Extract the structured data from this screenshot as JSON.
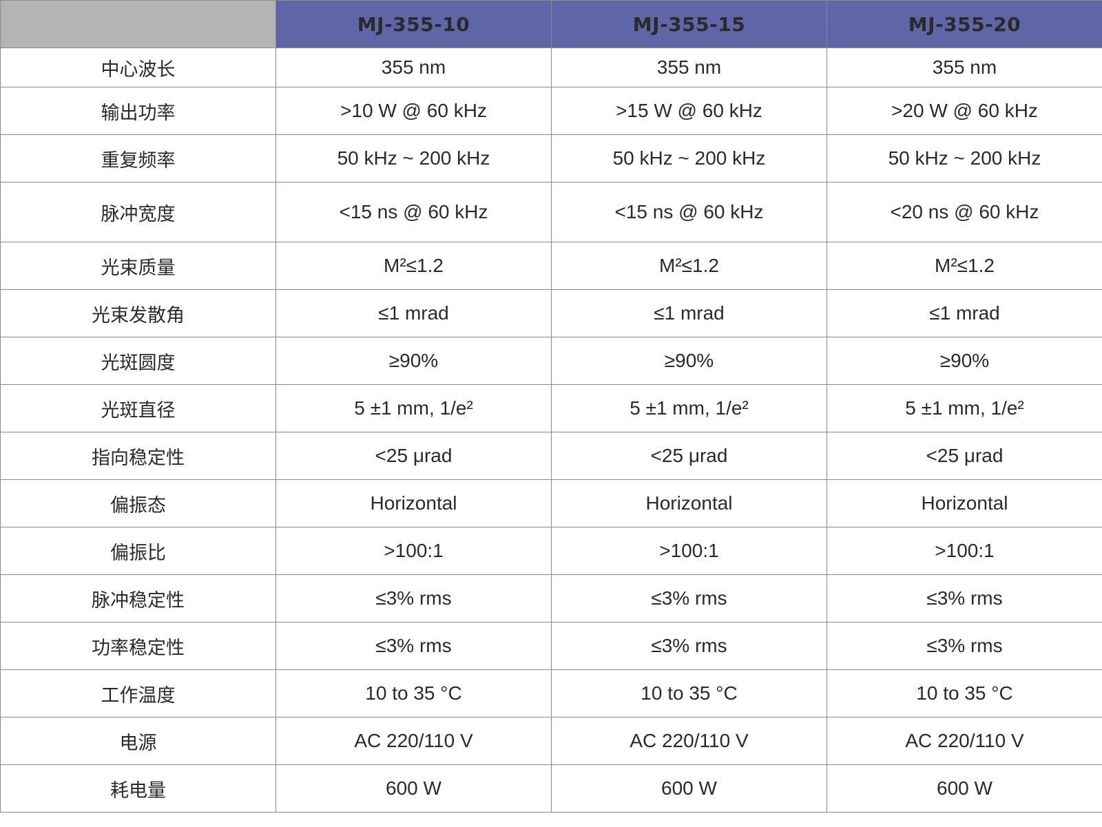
{
  "table": {
    "corner": "",
    "models": [
      "MJ-355-10",
      "MJ-355-15",
      "MJ-355-20"
    ],
    "rows": [
      {
        "label": "中心波长",
        "values": [
          "355 nm",
          "355 nm",
          "355 nm"
        ]
      },
      {
        "label": "输出功率",
        "values": [
          ">10 W @ 60 kHz",
          ">15 W @ 60 kHz",
          ">20 W @ 60 kHz"
        ]
      },
      {
        "label": "重复频率",
        "values": [
          "50 kHz ~ 200 kHz",
          "50 kHz ~ 200 kHz",
          "50 kHz ~ 200 kHz"
        ]
      },
      {
        "label": "脉冲宽度",
        "values": [
          "<15 ns @ 60 kHz",
          "<15 ns @ 60 kHz",
          "<20 ns @ 60 kHz"
        ]
      },
      {
        "label": "光束质量",
        "values": [
          "M²≤1.2",
          "M²≤1.2",
          "M²≤1.2"
        ]
      },
      {
        "label": "光束发散角",
        "values": [
          "≤1 mrad",
          "≤1 mrad",
          "≤1 mrad"
        ]
      },
      {
        "label": "光斑圆度",
        "values": [
          "≥90%",
          "≥90%",
          "≥90%"
        ]
      },
      {
        "label": "光斑直径",
        "values": [
          "5 ±1 mm, 1/e²",
          "5 ±1 mm, 1/e²",
          "5 ±1 mm, 1/e²"
        ]
      },
      {
        "label": "指向稳定性",
        "values": [
          "<25 μrad",
          "<25 μrad",
          "<25 μrad"
        ]
      },
      {
        "label": "偏振态",
        "values": [
          "Horizontal",
          "Horizontal",
          "Horizontal"
        ]
      },
      {
        "label": "偏振比",
        "values": [
          ">100:1",
          ">100:1",
          ">100:1"
        ]
      },
      {
        "label": "脉冲稳定性",
        "values": [
          "≤3% rms",
          "≤3% rms",
          "≤3% rms"
        ]
      },
      {
        "label": "功率稳定性",
        "values": [
          "≤3% rms",
          "≤3% rms",
          "≤3% rms"
        ]
      },
      {
        "label": "工作温度",
        "values": [
          "10 to 35 °C",
          "10 to 35 °C",
          "10 to 35 °C"
        ]
      },
      {
        "label": "电源",
        "values": [
          "AC 220/110 V",
          "AC 220/110 V",
          "AC 220/110 V"
        ]
      },
      {
        "label": "耗电量",
        "values": [
          "600 W",
          "600 W",
          "600 W"
        ]
      }
    ]
  },
  "colors": {
    "header_bg": "#5f66a8",
    "corner_bg": "#b4b4b4",
    "header_text": "#ffffff",
    "border": "#8a8a8a"
  }
}
